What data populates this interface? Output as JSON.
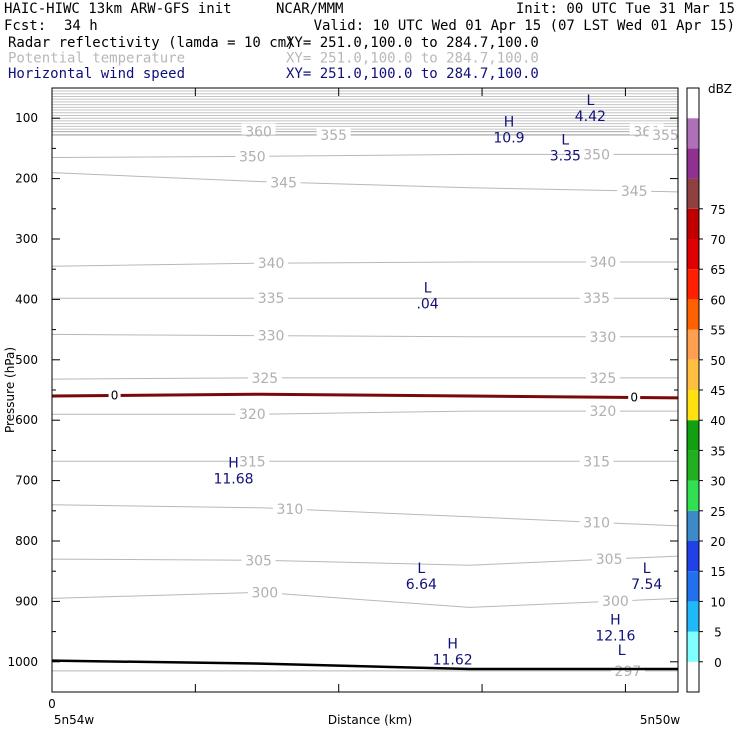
{
  "header": {
    "model_line": "HAIC-HIWC 13km ARW-GFS init",
    "org": "NCAR/MMM",
    "init": "Init: 00 UTC Tue 31 Mar 15",
    "fcst_label": "Fcst:",
    "fcst_value": "34 h",
    "valid": "Valid: 10 UTC Wed 01 Apr 15 (07 LST Wed 01 Apr 15)",
    "fields": [
      {
        "name": "Radar reflectivity (lamda = 10 cm)",
        "xy": "XY= 251.0,100.0 to 284.7,100.0",
        "color": "#000000"
      },
      {
        "name": "Potential temperature",
        "xy": "XY= 251.0,100.0 to 284.7,100.0",
        "color": "#b8b8b8"
      },
      {
        "name": "Horizontal wind speed",
        "xy": "XY= 251.0,100.0 to 284.7,100.0",
        "color": "#10107a"
      }
    ]
  },
  "chart_data": {
    "type": "line",
    "title": "",
    "ylabel": "Pressure (hPa)",
    "xlabel": "Distance (km)",
    "ylim": [
      1050,
      50
    ],
    "y_ticks": [
      100,
      200,
      300,
      400,
      500,
      600,
      700,
      800,
      900,
      1000
    ],
    "x_tick_labels": [
      {
        "x": 0,
        "label": "0"
      }
    ],
    "x_end_labels": {
      "left": "5n54w",
      "right": "5n50w"
    },
    "theta_isentropes": [
      {
        "label": "360",
        "y": [
          122,
          122,
          122,
          122
        ],
        "label_x": [
          0.33,
          0.95
        ]
      },
      {
        "label": "355",
        "y": [
          128,
          128,
          128,
          128
        ],
        "label_x": [
          0.45,
          0.98
        ]
      },
      {
        "label": "350",
        "y": [
          165,
          163,
          160,
          160
        ],
        "label_x": [
          0.32,
          0.87
        ]
      },
      {
        "label": "345",
        "y": [
          190,
          205,
          215,
          222
        ],
        "label_x": [
          0.37,
          0.93
        ]
      },
      {
        "label": "340",
        "y": [
          345,
          340,
          338,
          338
        ],
        "label_x": [
          0.35,
          0.88
        ]
      },
      {
        "label": "335",
        "y": [
          398,
          398,
          398,
          398
        ],
        "label_x": [
          0.35,
          0.87
        ]
      },
      {
        "label": "330",
        "y": [
          458,
          460,
          462,
          462
        ],
        "label_x": [
          0.35,
          0.88
        ]
      },
      {
        "label": "325",
        "y": [
          532,
          530,
          530,
          530
        ],
        "label_x": [
          0.34,
          0.88
        ]
      },
      {
        "label": "320",
        "y": [
          590,
          590,
          585,
          585
        ],
        "label_x": [
          0.32,
          0.88
        ]
      },
      {
        "label": "315",
        "y": [
          668,
          668,
          668,
          668
        ],
        "label_x": [
          0.32,
          0.87
        ]
      },
      {
        "label": "310",
        "y": [
          740,
          745,
          760,
          775
        ],
        "label_x": [
          0.38,
          0.87
        ]
      },
      {
        "label": "305",
        "y": [
          830,
          832,
          840,
          825
        ],
        "label_x": [
          0.33,
          0.89
        ]
      },
      {
        "label": "300",
        "y": [
          895,
          885,
          910,
          895
        ],
        "label_x": [
          0.34,
          0.9
        ]
      },
      {
        "label": "297",
        "y": [
          1015,
          1015,
          1015,
          1015
        ],
        "label_x": [
          0.92
        ]
      }
    ],
    "dbz_zero_line": {
      "label": "0",
      "y": [
        560,
        557,
        560,
        563
      ]
    },
    "terrain_line": {
      "y": [
        998,
        1003,
        1012,
        1012
      ]
    },
    "wind_extrema": [
      {
        "kind": "L",
        "value": "4.42",
        "x": 0.86,
        "p": 85
      },
      {
        "kind": "H",
        "value": "10.9",
        "x": 0.73,
        "p": 120
      },
      {
        "kind": "L",
        "value": "3.35",
        "x": 0.82,
        "p": 150
      },
      {
        "kind": "L",
        "value": ".04",
        "x": 0.6,
        "p": 395
      },
      {
        "kind": "H",
        "value": "11.68",
        "x": 0.29,
        "p": 685
      },
      {
        "kind": "L",
        "value": "6.64",
        "x": 0.59,
        "p": 860
      },
      {
        "kind": "L",
        "value": "7.54",
        "x": 0.95,
        "p": 860
      },
      {
        "kind": "H",
        "value": "12.16",
        "x": 0.9,
        "p": 945
      },
      {
        "kind": "H",
        "value": "11.62",
        "x": 0.64,
        "p": 985
      },
      {
        "kind": "L",
        "value": "",
        "x": 0.91,
        "p": 995
      }
    ],
    "colorbar": {
      "unit": "dBZ",
      "ticks": [
        "0",
        "5",
        "10",
        "15",
        "20",
        "25",
        "30",
        "35",
        "40",
        "45",
        "50",
        "55",
        "60",
        "65",
        "70",
        "75"
      ],
      "colors": [
        "#ffffff",
        "#7fffff",
        "#1fb8f8",
        "#2070f0",
        "#2040e8",
        "#3c8ac8",
        "#30e050",
        "#20b020",
        "#10a010",
        "#ffe010",
        "#ffc040",
        "#ffa050",
        "#ff6000",
        "#ff2000",
        "#e00000",
        "#c00000",
        "#904040",
        "#903090",
        "#b070b8",
        "#ffffff"
      ]
    }
  }
}
